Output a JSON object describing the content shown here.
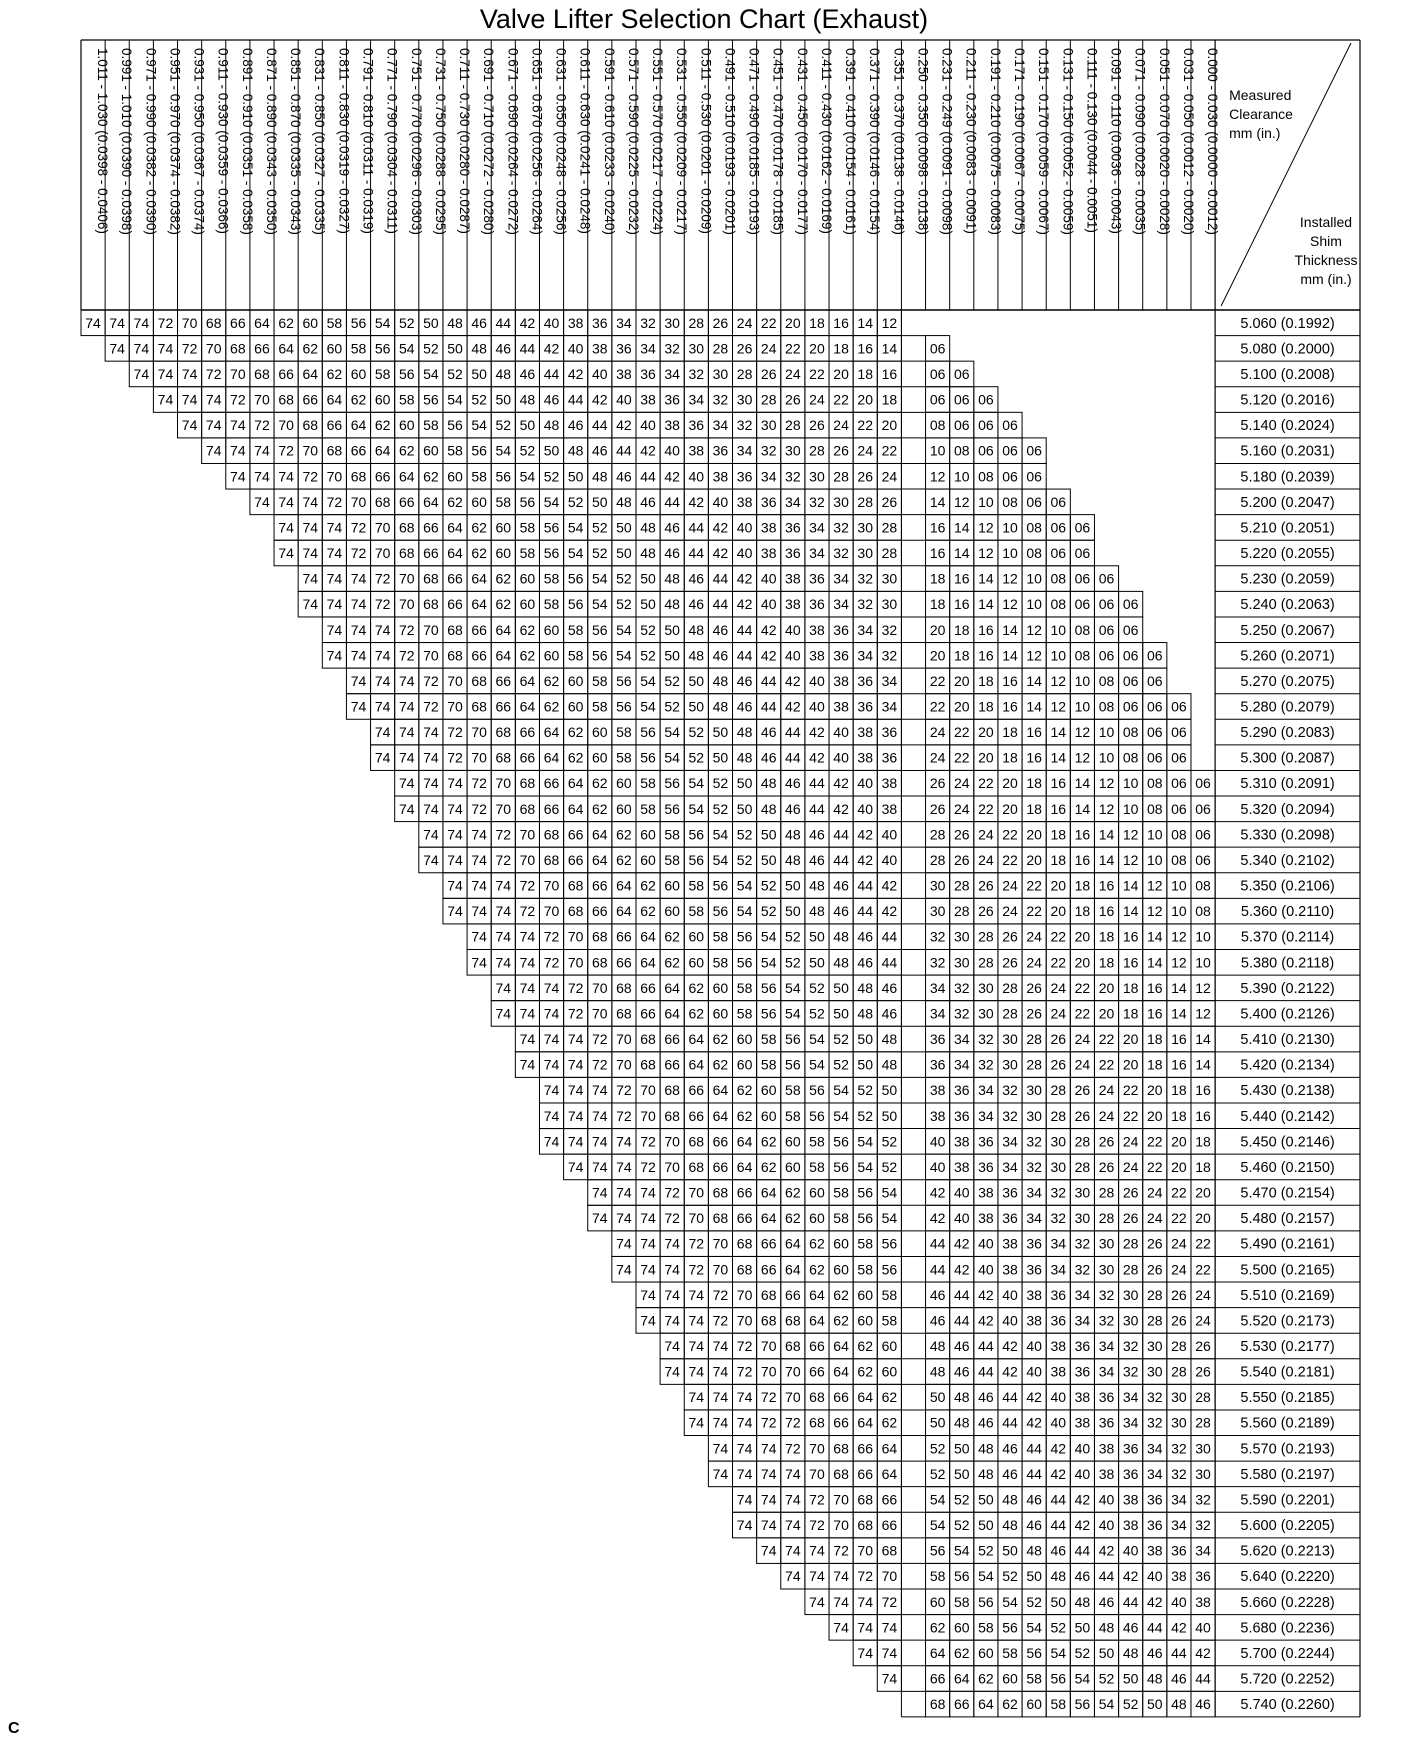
{
  "title": "Valve Lifter Selection Chart (Exhaust)",
  "corner": {
    "measured": [
      "Measured",
      "Clearance",
      "mm (in.)"
    ],
    "installed": [
      "Installed",
      "Shim",
      "Thickness",
      "mm (in.)"
    ]
  },
  "footer": "C",
  "columns": [
    "1.011 - 1.030 (0.0398 - 0.0406)",
    "0.991 - 1.010 (0.0390 - 0.0398)",
    "0.971 - 0.990 (0.0382 - 0.0390)",
    "0.951 - 0.970 (0.0374 - 0.0382)",
    "0.931 - 0.950 (0.0367 - 0.0374)",
    "0.911 - 0.930 (0.0359 - 0.0366)",
    "0.891 - 0.910 (0.0351 - 0.0358)",
    "0.871 - 0.890 (0.0343 - 0.0350)",
    "0.851 - 0.870 (0.0335 - 0.0343)",
    "0.831 - 0.850 (0.0327 - 0.0335)",
    "0.811 - 0.830 (0.0319 - 0.0327)",
    "0.791 - 0.810 (0.0311 - 0.0319)",
    "0.771 - 0.790 (0.0304 - 0.0311)",
    "0.751 - 0.770 (0.0296 - 0.0303)",
    "0.731 - 0.750 (0.0288 - 0.0295)",
    "0.711 - 0.730 (0.0280 - 0.0287)",
    "0.691 - 0.710 (0.0272 - 0.0280)",
    "0.671 - 0.690 (0.0264 - 0.0272)",
    "0.651 - 0.670 (0.0256 - 0.0264)",
    "0.631 - 0.650 (0.0248 - 0.0256)",
    "0.611 - 0.630 (0.0241 - 0.0248)",
    "0.591 - 0.610 (0.0233 - 0.0240)",
    "0.571 - 0.590 (0.0225 - 0.0232)",
    "0.551 - 0.570 (0.0217 - 0.0224)",
    "0.531 - 0.550 (0.0209 - 0.0217)",
    "0.511 - 0.530 (0.0201 - 0.0209)",
    "0.491 - 0.510 (0.0193 - 0.0201)",
    "0.471 - 0.490 (0.0185 - 0.0193)",
    "0.451 - 0.470 (0.0178 - 0.0185)",
    "0.431 - 0.450 (0.0170 - 0.0177)",
    "0.411 - 0.430 (0.0162 - 0.0169)",
    "0.391 - 0.410 (0.0154 - 0.0161)",
    "0.371 - 0.390 (0.0146 - 0.0154)",
    "0.351 - 0.370 (0.0138 - 0.0146)",
    "0.250 - 0.350 (0.0098 - 0.0138)",
    "0.231 - 0.249 (0.0091 - 0.0098)",
    "0.211 - 0.230 (0.0083 - 0.0091)",
    "0.191 - 0.210 (0.0075 - 0.0083)",
    "0.171 - 0.190 (0.0067 - 0.0075)",
    "0.151 - 0.170 (0.0059 - 0.0067)",
    "0.131 - 0.150 (0.0052 - 0.0059)",
    "0.111 - 0.130 (0.0044 - 0.0051)",
    "0.091 - 0.110 (0.0036 - 0.0043)",
    "0.071 - 0.090 (0.0028 - 0.0035)",
    "0.051 - 0.070 (0.0020 - 0.0028)",
    "0.031 - 0.050 (0.0012 - 0.0020)",
    "0.000 - 0.030 (0.0000 - 0.0012)"
  ],
  "rows": [
    {
      "label": "5.060 (0.1992)",
      "start": 0,
      "left": "74 74 74 72 70 68 66 64 62 60 58 56 54 52 50 48 46 44 42 40 38 36 34 32 30 28 26 24 22 20 18 16 14 12",
      "right": ""
    },
    {
      "label": "5.080 (0.2000)",
      "start": 1,
      "left": "74 74 74 72 70 68 66 64 62 60 58 56 54 52 50 48 46 44 42 40 38 36 34 32 30 28 26 24 22 20 18 16 14",
      "right": "06"
    },
    {
      "label": "5.100 (0.2008)",
      "start": 2,
      "left": "74 74 74 72 70 68 66 64 62 60 58 56 54 52 50 48 46 44 42 40 38 36 34 32 30 28 26 24 22 20 18 16",
      "right": "06 06"
    },
    {
      "label": "5.120 (0.2016)",
      "start": 3,
      "left": "74 74 74 72 70 68 66 64 62 60 58 56 54 52 50 48 46 44 42 40 38 36 34 32 30 28 26 24 22 20 18",
      "right": "06 06 06"
    },
    {
      "label": "5.140 (0.2024)",
      "start": 4,
      "left": "74 74 74 72 70 68 66 64 62 60 58 56 54 52 50 48 46 44 42 40 38 36 34 32 30 28 26 24 22 20",
      "right": "08 06 06 06"
    },
    {
      "label": "5.160 (0.2031)",
      "start": 5,
      "left": "74 74 74 72 70 68 66 64 62 60 58 56 54 52 50 48 46 44 42 40 38 36 34 32 30 28 26 24 22",
      "right": "10 08 06 06 06"
    },
    {
      "label": "5.180 (0.2039)",
      "start": 6,
      "left": "74 74 74 72 70 68 66 64 62 60 58 56 54 52 50 48 46 44 42 40 38 36 34 32 30 28 26 24",
      "right": "12 10 08 06 06"
    },
    {
      "label": "5.200 (0.2047)",
      "start": 7,
      "left": "74 74 74 72 70 68 66 64 62 60 58 56 54 52 50 48 46 44 42 40 38 36 34 32 30 28 26",
      "right": "14 12 10 08 06 06"
    },
    {
      "label": "5.210 (0.2051)",
      "start": 8,
      "left": "74 74 74 72 70 68 66 64 62 60 58 56 54 52 50 48 46 44 42 40 38 36 34 32 30 28",
      "right": "16 14 12 10 08 06 06"
    },
    {
      "label": "5.220 (0.2055)",
      "start": 8,
      "left": "74 74 74 72 70 68 66 64 62 60 58 56 54 52 50 48 46 44 42 40 38 36 34 32 30 28",
      "right": "16 14 12 10 08 06 06"
    },
    {
      "label": "5.230 (0.2059)",
      "start": 9,
      "left": "74 74 74 72 70 68 66 64 62 60 58 56 54 52 50 48 46 44 42 40 38 36 34 32 30",
      "right": "18 16 14 12 10 08 06 06"
    },
    {
      "label": "5.240 (0.2063)",
      "start": 9,
      "left": "74 74 74 72 70 68 66 64 62 60 58 56 54 52 50 48 46 44 42 40 38 36 34 32 30",
      "right": "18 16 14 12 10 08 06 06 06"
    },
    {
      "label": "5.250 (0.2067)",
      "start": 10,
      "left": "74 74 74 72 70 68 66 64 62 60 58 56 54 52 50 48 46 44 42 40 38 36 34 32",
      "right": "20 18 16 14 12 10 08 06 06"
    },
    {
      "label": "5.260 (0.2071)",
      "start": 10,
      "left": "74 74 74 72 70 68 66 64 62 60 58 56 54 52 50 48 46 44 42 40 38 36 34 32",
      "right": "20 18 16 14 12 10 08 06 06 06"
    },
    {
      "label": "5.270 (0.2075)",
      "start": 11,
      "left": "74 74 74 72 70 68 66 64 62 60 58 56 54 52 50 48 46 44 42 40 38 36 34",
      "right": "22 20 18 16 14 12 10 08 06 06"
    },
    {
      "label": "5.280 (0.2079)",
      "start": 11,
      "left": "74 74 74 72 70 68 66 64 62 60 58 56 54 52 50 48 46 44 42 40 38 36 34",
      "right": "22 20 18 16 14 12 10 08 06 06 06"
    },
    {
      "label": "5.290 (0.2083)",
      "start": 12,
      "left": "74 74 74 72 70 68 66 64 62 60 58 56 54 52 50 48 46 44 42 40 38 36",
      "right": "24 22 20 18 16 14 12 10 08 06 06"
    },
    {
      "label": "5.300 (0.2087)",
      "start": 12,
      "left": "74 74 74 72 70 68 66 64 62 60 58 56 54 52 50 48 46 44 42 40 38 36",
      "right": "24 22 20 18 16 14 12 10 08 06 06"
    },
    {
      "label": "5.310 (0.2091)",
      "start": 13,
      "left": "74 74 74 72 70 68 66 64 62 60 58 56 54 52 50 48 46 44 42 40 38",
      "right": "26 24 22 20 18 16 14 12 10 08 06 06"
    },
    {
      "label": "5.320 (0.2094)",
      "start": 13,
      "left": "74 74 74 72 70 68 66 64 62 60 58 56 54 52 50 48 46 44 42 40 38",
      "right": "26 24 22 20 18 16 14 12 10 08 06 06"
    },
    {
      "label": "5.330 (0.2098)",
      "start": 14,
      "left": "74 74 74 72 70 68 66 64 62 60 58 56 54 52 50 48 46 44 42 40",
      "right": "28 26 24 22 20 18 16 14 12 10 08 06"
    },
    {
      "label": "5.340 (0.2102)",
      "start": 14,
      "left": "74 74 74 72 70 68 66 64 62 60 58 56 54 52 50 48 46 44 42 40",
      "right": "28 26 24 22 20 18 16 14 12 10 08 06"
    },
    {
      "label": "5.350 (0.2106)",
      "start": 15,
      "left": "74 74 74 72 70 68 66 64 62 60 58 56 54 52 50 48 46 44 42",
      "right": "30 28 26 24 22 20 18 16 14 12 10 08"
    },
    {
      "label": "5.360 (0.2110)",
      "start": 15,
      "left": "74 74 74 72 70 68 66 64 62 60 58 56 54 52 50 48 46 44 42",
      "right": "30 28 26 24 22 20 18 16 14 12 10 08"
    },
    {
      "label": "5.370 (0.2114)",
      "start": 16,
      "left": "74 74 74 72 70 68 66 64 62 60 58 56 54 52 50 48 46 44",
      "right": "32 30 28 26 24 22 20 18 16 14 12 10"
    },
    {
      "label": "5.380 (0.2118)",
      "start": 16,
      "left": "74 74 74 72 70 68 66 64 62 60 58 56 54 52 50 48 46 44",
      "right": "32 30 28 26 24 22 20 18 16 14 12 10"
    },
    {
      "label": "5.390 (0.2122)",
      "start": 17,
      "left": "74 74 74 72 70 68 66 64 62 60 58 56 54 52 50 48 46",
      "right": "34 32 30 28 26 24 22 20 18 16 14 12"
    },
    {
      "label": "5.400 (0.2126)",
      "start": 17,
      "left": "74 74 74 72 70 68 66 64 62 60 58 56 54 52 50 48 46",
      "right": "34 32 30 28 26 24 22 20 18 16 14 12"
    },
    {
      "label": "5.410 (0.2130)",
      "start": 18,
      "left": "74 74 74 72 70 68 66 64 62 60 58 56 54 52 50 48",
      "right": "36 34 32 30 28 26 24 22 20 18 16 14"
    },
    {
      "label": "5.420 (0.2134)",
      "start": 18,
      "left": "74 74 74 72 70 68 66 64 62 60 58 56 54 52 50 48",
      "right": "36 34 32 30 28 26 24 22 20 18 16 14"
    },
    {
      "label": "5.430 (0.2138)",
      "start": 19,
      "left": "74 74 74 72 70 68 66 64 62 60 58 56 54 52 50",
      "right": "38 36 34 32 30 28 26 24 22 20 18 16"
    },
    {
      "label": "5.440 (0.2142)",
      "start": 19,
      "left": "74 74 74 72 70 68 66 64 62 60 58 56 54 52 50",
      "right": "38 36 34 32 30 28 26 24 22 20 18 16"
    },
    {
      "label": "5.450 (0.2146)",
      "start": 19,
      "left": "74 74 74 74 72 70 68 66 64 62 60 58 56 54 52",
      "right": "40 38 36 34 32 30 28 26 24 22 20 18"
    },
    {
      "label": "5.460 (0.2150)",
      "start": 20,
      "left": "74 74 74 72 70 68 66 64 62 60 58 56 54 52",
      "right": "40 38 36 34 32 30 28 26 24 22 20 18"
    },
    {
      "label": "5.470 (0.2154)",
      "start": 21,
      "left": "74 74 74 72 70 68 66 64 62 60 58 56 54",
      "right": "42 40 38 36 34 32 30 28 26 24 22 20"
    },
    {
      "label": "5.480 (0.2157)",
      "start": 21,
      "left": "74 74 74 72 70 68 66 64 62 60 58 56 54",
      "right": "42 40 38 36 34 32 30 28 26 24 22 20"
    },
    {
      "label": "5.490 (0.2161)",
      "start": 22,
      "left": "74 74 74 72 70 68 66 64 62 60 58 56",
      "right": "44 42 40 38 36 34 32 30 28 26 24 22"
    },
    {
      "label": "5.500 (0.2165)",
      "start": 22,
      "left": "74 74 74 72 70 68 66 64 62 60 58 56",
      "right": "44 42 40 38 36 34 32 30 28 26 24 22"
    },
    {
      "label": "5.510 (0.2169)",
      "start": 23,
      "left": "74 74 74 72 70 68 66 64 62 60 58",
      "right": "46 44 42 40 38 36 34 32 30 28 26 24"
    },
    {
      "label": "5.520 (0.2173)",
      "start": 23,
      "left": "74 74 74 72 70 68 68 64 62 60 58",
      "right": "46 44 42 40 38 36 34 32 30 28 26 24"
    },
    {
      "label": "5.530 (0.2177)",
      "start": 24,
      "left": "74 74 74 72 70 68 66 64 62 60",
      "right": "48 46 44 42 40 38 36 34 32 30 28 26"
    },
    {
      "label": "5.540 (0.2181)",
      "start": 24,
      "left": "74 74 74 72 70 70 66 64 62 60",
      "right": "48 46 44 42 40 38 36 34 32 30 28 26"
    },
    {
      "label": "5.550 (0.2185)",
      "start": 25,
      "left": "74 74 74 72 70 68 66 64 62",
      "right": "50 48 46 44 42 40 38 36 34 32 30 28"
    },
    {
      "label": "5.560 (0.2189)",
      "start": 25,
      "left": "74 74 74 72 72 68 66 64 62",
      "right": "50 48 46 44 42 40 38 36 34 32 30 28"
    },
    {
      "label": "5.570 (0.2193)",
      "start": 26,
      "left": "74 74 74 72 70 68 66 64",
      "right": "52 50 48 46 44 42 40 38 36 34 32 30"
    },
    {
      "label": "5.580 (0.2197)",
      "start": 26,
      "left": "74 74 74 74 70 68 66 64",
      "right": "52 50 48 46 44 42 40 38 36 34 32 30"
    },
    {
      "label": "5.590 (0.2201)",
      "start": 27,
      "left": "74 74 74 72 70 68 66",
      "right": "54 52 50 48 46 44 42 40 38 36 34 32"
    },
    {
      "label": "5.600 (0.2205)",
      "start": 27,
      "left": "74 74 74 72 70 68 66",
      "right": "54 52 50 48 46 44 42 40 38 36 34 32"
    },
    {
      "label": "5.620 (0.2213)",
      "start": 28,
      "left": "74 74 74 72 70 68",
      "right": "56 54 52 50 48 46 44 42 40 38 36 34"
    },
    {
      "label": "5.640 (0.2220)",
      "start": 29,
      "left": "74 74 74 72 70",
      "right": "58 56 54 52 50 48 46 44 42 40 38 36"
    },
    {
      "label": "5.660 (0.2228)",
      "start": 30,
      "left": "74 74 74 72",
      "right": "60 58 56 54 52 50 48 46 44 42 40 38"
    },
    {
      "label": "5.680 (0.2236)",
      "start": 31,
      "left": "74 74 74",
      "right": "62 60 58 56 54 52 50 48 46 44 42 40"
    },
    {
      "label": "5.700 (0.2244)",
      "start": 32,
      "left": "74 74",
      "right": "64 62 60 58 56 54 52 50 48 46 44 42"
    },
    {
      "label": "5.720 (0.2252)",
      "start": 33,
      "left": "74",
      "right": "66 64 62 60 58 56 54 52 50 48 46 44"
    },
    {
      "label": "5.740 (0.2260)",
      "start": 34,
      "left": "",
      "right": "68 66 64 62 60 58 56 54 52 50 48 46"
    }
  ]
}
